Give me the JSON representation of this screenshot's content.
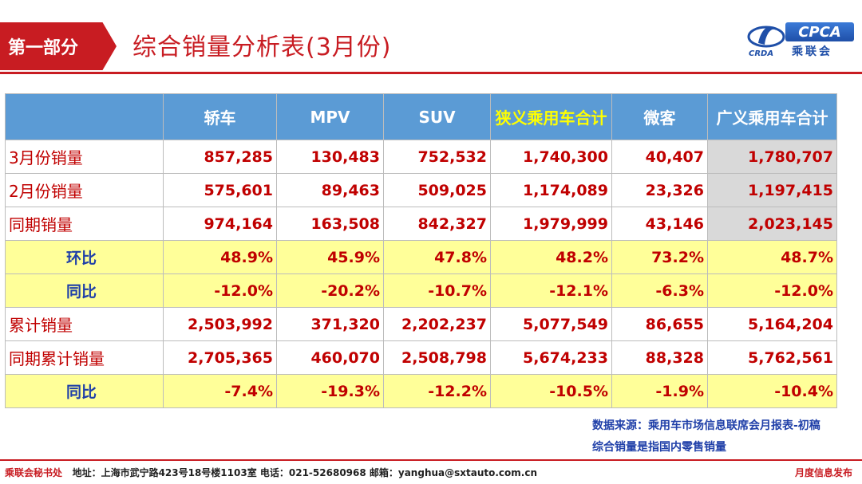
{
  "header": {
    "section": "第一部分",
    "title": "综合销量分析表(3月份)",
    "logo_text": "CPCA",
    "logo_cn": "乘联会",
    "logo_sub": "CRDA"
  },
  "table": {
    "columns": [
      "",
      "轿车",
      "MPV",
      "SUV",
      "狭义乘用车合计",
      "微客",
      "广义乘用车合计"
    ],
    "rows": [
      {
        "label": "3月份销量",
        "values": [
          "857,285",
          "130,483",
          "752,532",
          "1,740,300",
          "40,407",
          "1,780,707"
        ]
      },
      {
        "label": "2月份销量",
        "values": [
          "575,601",
          "89,463",
          "509,025",
          "1,174,089",
          "23,326",
          "1,197,415"
        ]
      },
      {
        "label": "同期销量",
        "values": [
          "974,164",
          "163,508",
          "842,327",
          "1,979,999",
          "43,146",
          "2,023,145"
        ]
      },
      {
        "label": "环比",
        "values": [
          "48.9%",
          "45.9%",
          "47.8%",
          "48.2%",
          "73.2%",
          "48.7%"
        ]
      },
      {
        "label": "同比",
        "values": [
          "-12.0%",
          "-20.2%",
          "-10.7%",
          "-12.1%",
          "-6.3%",
          "-12.0%"
        ]
      },
      {
        "label": "累计销量",
        "values": [
          "2,503,992",
          "371,320",
          "2,202,237",
          "5,077,549",
          "86,655",
          "5,164,204"
        ]
      },
      {
        "label": "同期累计销量",
        "values": [
          "2,705,365",
          "460,070",
          "2,508,798",
          "5,674,233",
          "88,328",
          "5,762,561"
        ]
      },
      {
        "label": "同比",
        "values": [
          "-7.4%",
          "-19.3%",
          "-12.2%",
          "-10.5%",
          "-1.9%",
          "-10.4%"
        ]
      }
    ]
  },
  "notes": {
    "source": "数据来源：乘用车市场信息联席会月报表-初稿",
    "definition": "综合销量是指国内零售销量"
  },
  "footer": {
    "org": "乘联会秘书处",
    "address": "地址：上海市武宁路423号18号楼1103室  电话：021-52680968  邮箱：yanghua@sxtauto.com.cn",
    "right": "月度信息发布"
  },
  "colors": {
    "brand_red": "#c81c22",
    "header_blue": "#5b9bd5",
    "highlight_yellow": "#ffff99",
    "value_red": "#c00000",
    "label_blue": "#1f3fa8"
  }
}
